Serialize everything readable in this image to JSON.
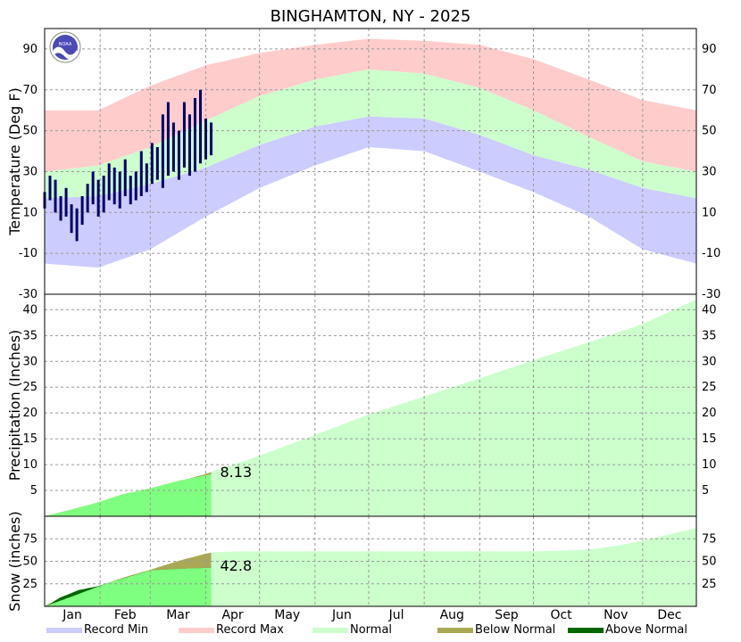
{
  "title": "BINGHAMTON, NY - 2025",
  "logo_text": "NOAA",
  "months": [
    "Jan",
    "Feb",
    "Mar",
    "Apr",
    "May",
    "Jun",
    "Jul",
    "Aug",
    "Sep",
    "Oct",
    "Nov",
    "Dec"
  ],
  "legend": [
    {
      "label": "Record Min",
      "color": "#ccccff"
    },
    {
      "label": "Record Max",
      "color": "#ffcccc"
    },
    {
      "label": "Normal",
      "color": "#ccffcc"
    },
    {
      "label": "Below Normal",
      "color": "#aaa855"
    },
    {
      "label": "Above Normal",
      "color": "#006600"
    }
  ],
  "colors": {
    "record_min": "#ccccff",
    "record_max": "#ffcccc",
    "normal": "#ccffcc",
    "observed_temp": "#000066",
    "observed_precip": "#7fff7f",
    "below_normal": "#aaa855",
    "above_normal": "#006600",
    "grid": "#999999"
  },
  "chart_data": [
    {
      "type": "area",
      "name": "temperature",
      "ylabel": "Temperature (Deg F)",
      "ylim": [
        -30,
        100
      ],
      "yticks": [
        -30,
        -10,
        10,
        30,
        50,
        70,
        90
      ],
      "grid": true,
      "normal_low": {
        "x": [
          1,
          31,
          60,
          91,
          121,
          152,
          182,
          213,
          244,
          274,
          305,
          335,
          365
        ],
        "y": [
          17,
          18,
          24,
          32,
          43,
          52,
          57,
          56,
          48,
          38,
          31,
          22,
          17
        ]
      },
      "normal_high": {
        "x": [
          1,
          31,
          60,
          91,
          121,
          152,
          182,
          213,
          244,
          274,
          305,
          335,
          365
        ],
        "y": [
          30,
          33,
          42,
          55,
          67,
          75,
          80,
          78,
          71,
          60,
          47,
          35,
          30
        ]
      },
      "record_low": {
        "x": [
          1,
          31,
          60,
          91,
          121,
          152,
          182,
          213,
          244,
          274,
          305,
          335,
          365
        ],
        "y": [
          -15,
          -17,
          -8,
          8,
          22,
          33,
          42,
          40,
          30,
          20,
          8,
          -8,
          -15
        ]
      },
      "record_high": {
        "x": [
          1,
          31,
          60,
          91,
          121,
          152,
          182,
          213,
          244,
          274,
          305,
          335,
          365
        ],
        "y": [
          60,
          60,
          72,
          82,
          88,
          92,
          95,
          94,
          92,
          85,
          75,
          65,
          60
        ]
      },
      "observed_range": [
        [
          1,
          12,
          20
        ],
        [
          4,
          16,
          28
        ],
        [
          7,
          10,
          26
        ],
        [
          10,
          6,
          18
        ],
        [
          13,
          8,
          22
        ],
        [
          16,
          0,
          14
        ],
        [
          19,
          -4,
          12
        ],
        [
          22,
          4,
          18
        ],
        [
          25,
          10,
          24
        ],
        [
          28,
          14,
          30
        ],
        [
          31,
          8,
          26
        ],
        [
          34,
          10,
          28
        ],
        [
          37,
          16,
          34
        ],
        [
          40,
          14,
          32
        ],
        [
          43,
          12,
          30
        ],
        [
          46,
          18,
          36
        ],
        [
          49,
          14,
          28
        ],
        [
          52,
          16,
          30
        ],
        [
          55,
          18,
          40
        ],
        [
          58,
          20,
          34
        ],
        [
          61,
          24,
          44
        ],
        [
          64,
          26,
          42
        ],
        [
          67,
          22,
          58
        ],
        [
          70,
          28,
          64
        ],
        [
          73,
          30,
          54
        ],
        [
          76,
          26,
          50
        ],
        [
          79,
          32,
          64
        ],
        [
          82,
          28,
          58
        ],
        [
          85,
          30,
          66
        ],
        [
          88,
          34,
          70
        ],
        [
          91,
          36,
          56
        ],
        [
          94,
          38,
          54
        ]
      ]
    },
    {
      "type": "area",
      "name": "precipitation",
      "ylabel": "Precipitation (Inches)",
      "ylim": [
        0,
        43
      ],
      "yticks": [
        5,
        10,
        15,
        20,
        25,
        30,
        35,
        40
      ],
      "grid": true,
      "normal_cumulative": {
        "x": [
          1,
          31,
          59,
          90,
          120,
          151,
          181,
          212,
          243,
          273,
          304,
          334,
          365
        ],
        "y": [
          0,
          2.6,
          5.1,
          8.1,
          11.6,
          15.6,
          19.6,
          23.1,
          26.6,
          30.1,
          33.6,
          37.1,
          42
        ]
      },
      "observed_cumulative": {
        "x": [
          1,
          15,
          30,
          45,
          60,
          75,
          94
        ],
        "y": [
          0,
          1.2,
          2.6,
          4.3,
          5.4,
          6.8,
          8.13
        ]
      },
      "annotation": "8.13"
    },
    {
      "type": "area",
      "name": "snow",
      "ylabel": "Snow (inches)",
      "ylim": [
        0,
        100
      ],
      "yticks": [
        25,
        50,
        75
      ],
      "grid": true,
      "normal_cumulative": {
        "x": [
          1,
          15,
          31,
          45,
          59,
          75,
          90,
          95,
          110,
          120,
          150,
          250,
          274,
          290,
          305,
          320,
          335,
          350,
          365
        ],
        "y": [
          0,
          10,
          22,
          32,
          40,
          50,
          58,
          60,
          61,
          61,
          61,
          61,
          61,
          62,
          63,
          67,
          73,
          80,
          87
        ]
      },
      "observed_cumulative": {
        "x": [
          1,
          5,
          10,
          15,
          20,
          30,
          40,
          50,
          60,
          70,
          80,
          94
        ],
        "y": [
          0,
          4,
          10,
          14,
          18,
          22,
          28,
          34,
          40,
          41,
          42,
          42.8
        ]
      },
      "annotation": "42.8"
    }
  ]
}
